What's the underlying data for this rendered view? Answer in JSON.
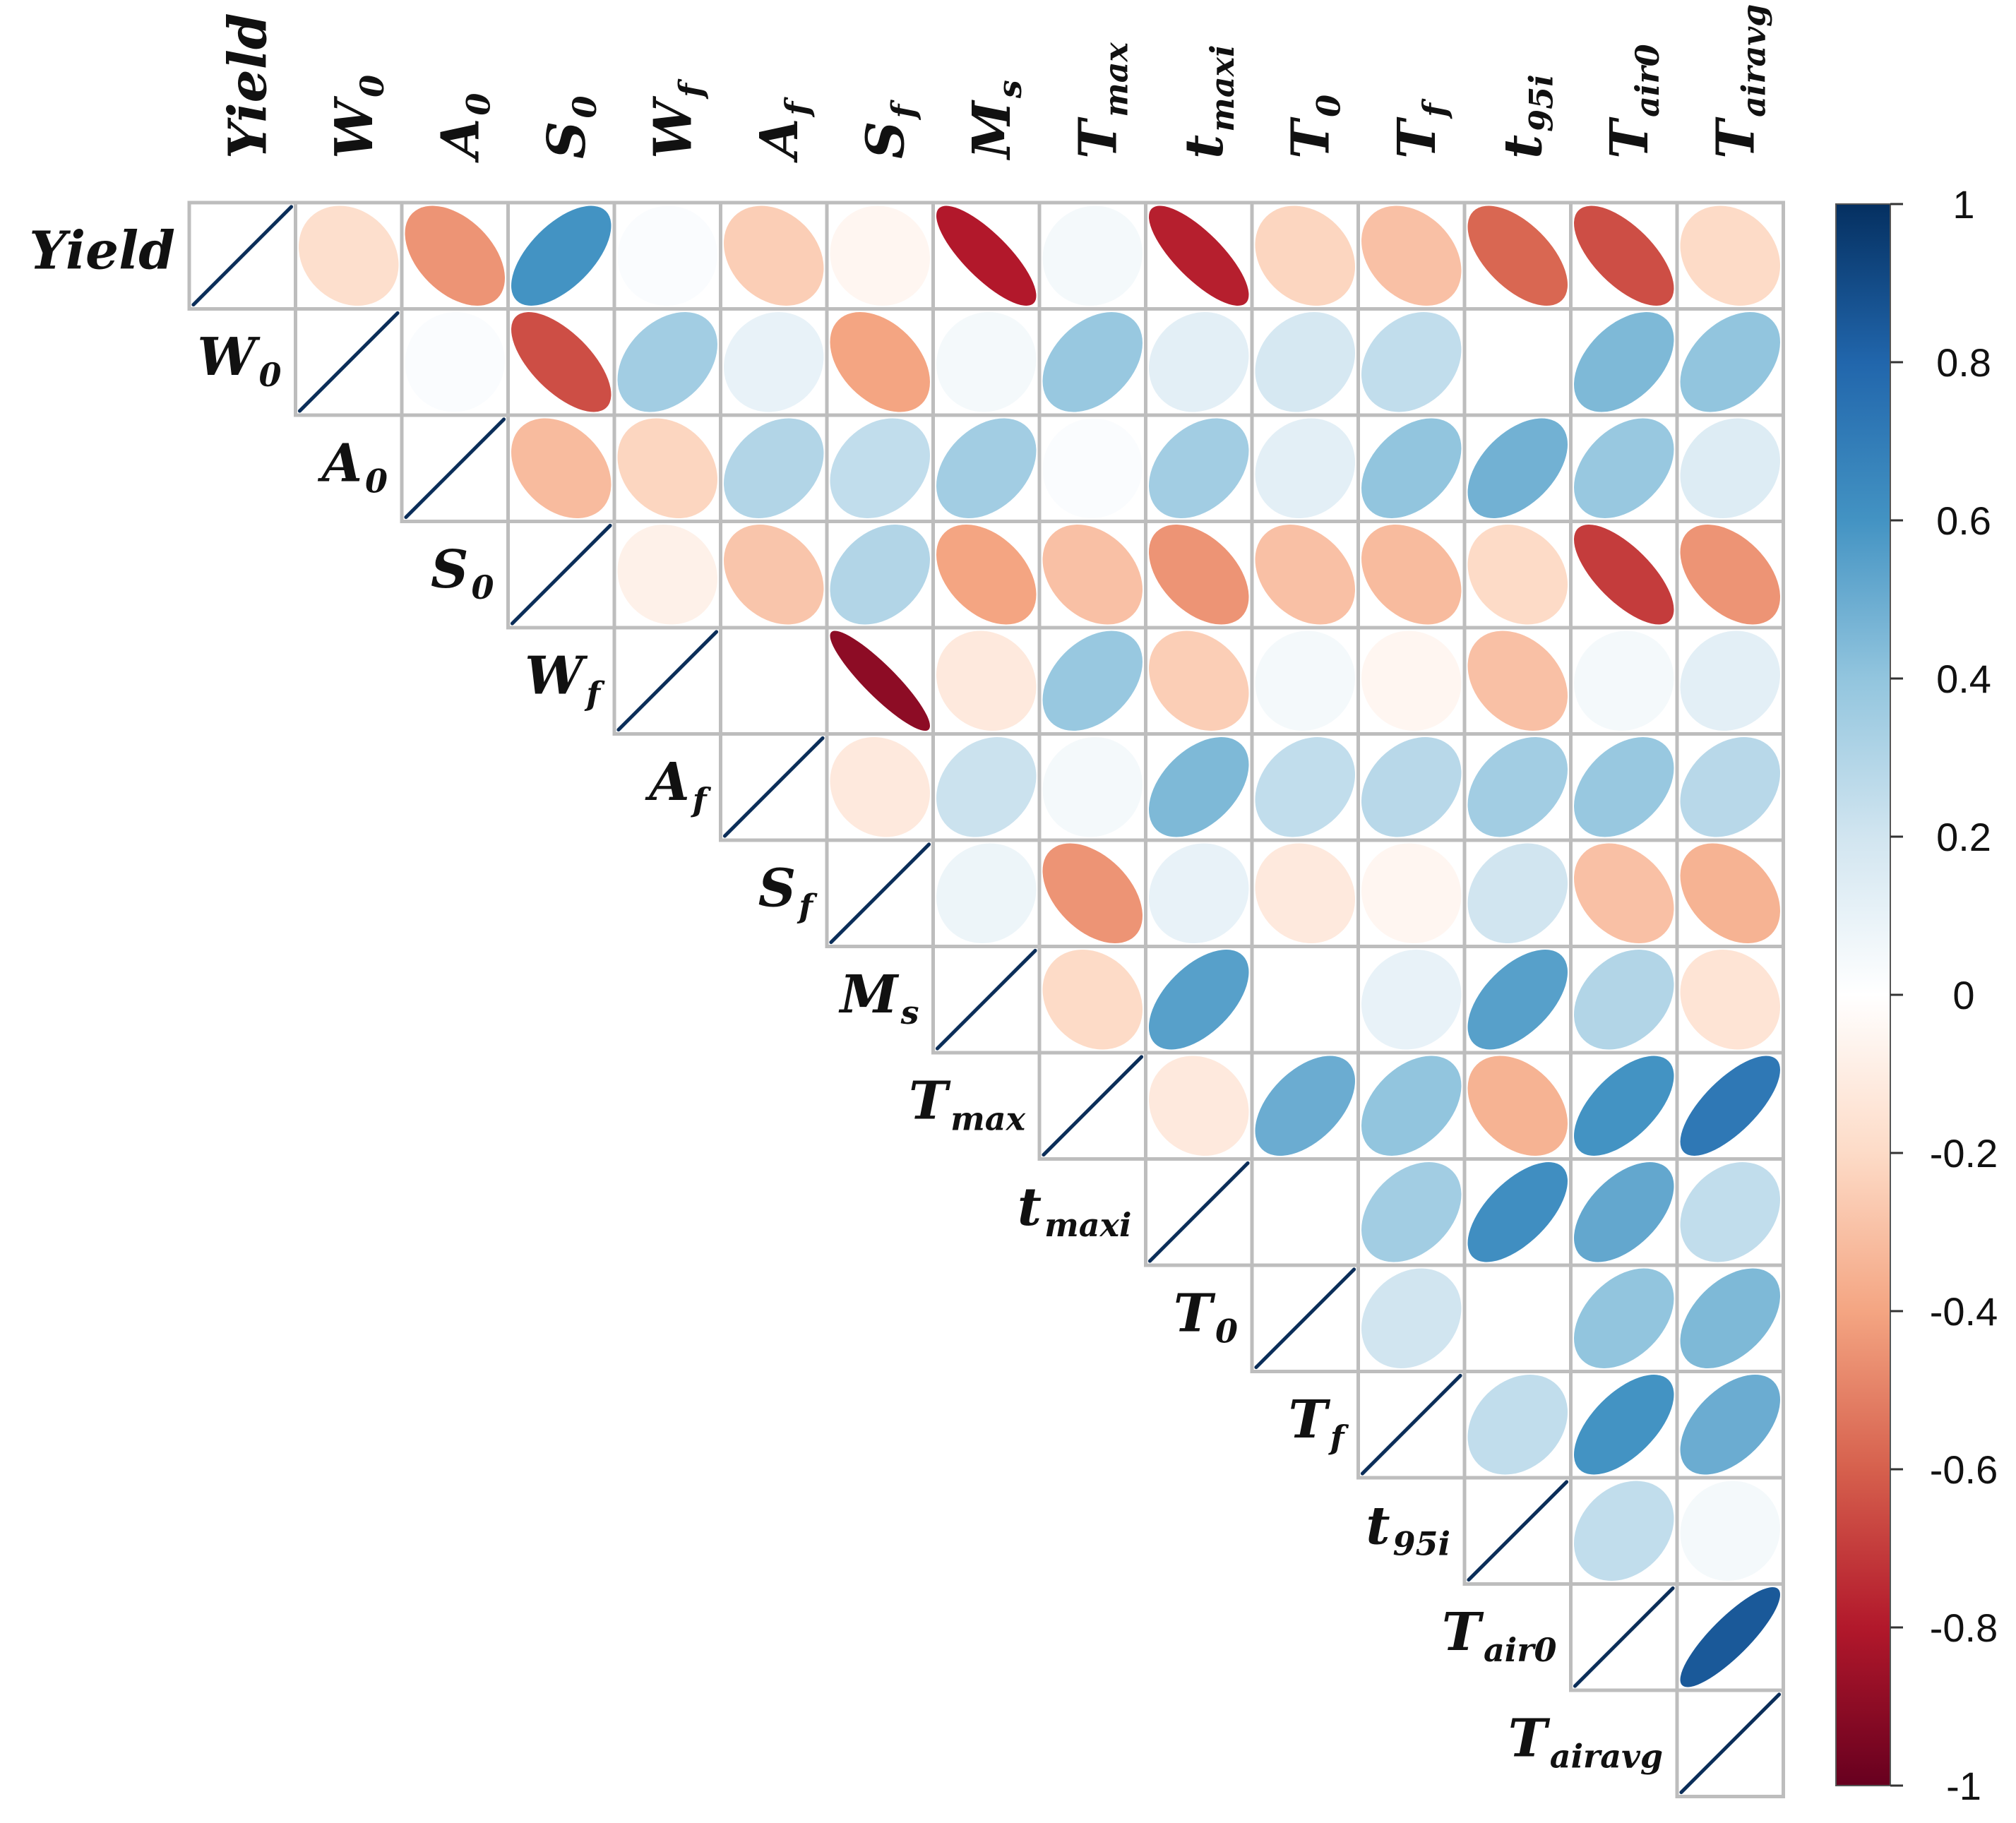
{
  "chart_data": {
    "type": "heatmap",
    "subtype": "correlation-ellipse-upper-triangle",
    "variables": [
      {
        "base": "Yield",
        "sub": ""
      },
      {
        "base": "W",
        "sub": "0"
      },
      {
        "base": "A",
        "sub": "0"
      },
      {
        "base": "S",
        "sub": "0"
      },
      {
        "base": "W",
        "sub": "f"
      },
      {
        "base": "A",
        "sub": "f"
      },
      {
        "base": "S",
        "sub": "f"
      },
      {
        "base": "M",
        "sub": "s"
      },
      {
        "base": "T",
        "sub": "max"
      },
      {
        "base": "t",
        "sub": "maxi"
      },
      {
        "base": "T",
        "sub": "0"
      },
      {
        "base": "T",
        "sub": "f"
      },
      {
        "base": "t",
        "sub": "95i"
      },
      {
        "base": "T",
        "sub": "air0"
      },
      {
        "base": "T",
        "sub": "airavg"
      }
    ],
    "matrix": [
      [
        1,
        -0.18,
        -0.45,
        0.6,
        0.02,
        -0.25,
        -0.05,
        -0.8,
        0.05,
        -0.78,
        -0.22,
        -0.3,
        -0.58,
        -0.65,
        -0.2
      ],
      [
        null,
        1,
        0.02,
        -0.65,
        0.35,
        0.1,
        -0.4,
        0.05,
        0.38,
        0.12,
        0.18,
        0.25,
        0.0,
        0.45,
        0.4
      ],
      [
        null,
        null,
        1,
        -0.32,
        -0.22,
        0.3,
        0.25,
        0.35,
        0.02,
        0.35,
        0.12,
        0.4,
        0.48,
        0.38,
        0.15
      ],
      [
        null,
        null,
        null,
        1,
        -0.08,
        -0.28,
        0.3,
        -0.4,
        -0.3,
        -0.45,
        -0.3,
        -0.32,
        -0.2,
        -0.7,
        -0.45
      ],
      [
        null,
        null,
        null,
        null,
        1,
        0.0,
        -0.9,
        -0.12,
        0.38,
        -0.25,
        0.05,
        -0.05,
        -0.3,
        0.05,
        0.12
      ],
      [
        null,
        null,
        null,
        null,
        null,
        1,
        -0.12,
        0.22,
        0.05,
        0.45,
        0.25,
        0.28,
        0.35,
        0.38,
        0.28
      ],
      [
        null,
        null,
        null,
        null,
        null,
        null,
        1,
        0.08,
        -0.45,
        0.1,
        -0.12,
        -0.05,
        0.2,
        -0.3,
        -0.35
      ],
      [
        null,
        null,
        null,
        null,
        null,
        null,
        null,
        1,
        -0.2,
        0.55,
        0.0,
        0.1,
        0.55,
        0.3,
        -0.15
      ],
      [
        null,
        null,
        null,
        null,
        null,
        null,
        null,
        null,
        1,
        -0.12,
        0.5,
        0.4,
        -0.35,
        0.6,
        0.72
      ],
      [
        null,
        null,
        null,
        null,
        null,
        null,
        null,
        null,
        null,
        1,
        0.0,
        0.35,
        0.62,
        0.52,
        0.25
      ],
      [
        null,
        null,
        null,
        null,
        null,
        null,
        null,
        null,
        null,
        null,
        1,
        0.2,
        0.0,
        0.4,
        0.45
      ],
      [
        null,
        null,
        null,
        null,
        null,
        null,
        null,
        null,
        null,
        null,
        null,
        1,
        0.25,
        0.6,
        0.5
      ],
      [
        null,
        null,
        null,
        null,
        null,
        null,
        null,
        null,
        null,
        null,
        null,
        null,
        1,
        0.25,
        0.05
      ],
      [
        null,
        null,
        null,
        null,
        null,
        null,
        null,
        null,
        null,
        null,
        null,
        null,
        null,
        1,
        0.85
      ],
      [
        null,
        null,
        null,
        null,
        null,
        null,
        null,
        null,
        null,
        null,
        null,
        null,
        null,
        null,
        1
      ]
    ],
    "colorbar": {
      "range": [
        -1,
        1
      ],
      "ticks": [
        "1",
        "0.8",
        "0.6",
        "0.4",
        "0.2",
        "0",
        "-0.2",
        "-0.4",
        "-0.6",
        "-0.8",
        "-1"
      ],
      "stops": [
        "#67001F",
        "#B2182B",
        "#D6604D",
        "#F4A582",
        "#FDDBC7",
        "#FFFFFF",
        "#D1E5F0",
        "#92C5DE",
        "#4393C3",
        "#2166AC",
        "#053061"
      ]
    },
    "title": "",
    "legend": "right"
  }
}
